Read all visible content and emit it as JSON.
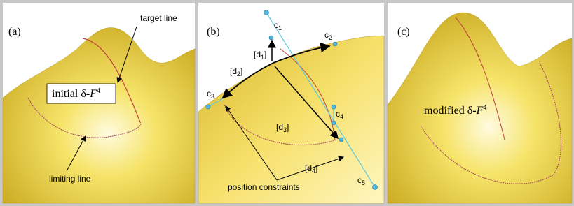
{
  "panel_a": {
    "label": "(a)",
    "target": "target line",
    "limiting": "limiting line",
    "surface": {
      "prefix": "initial δ-",
      "italic": "F",
      "sup": "4"
    }
  },
  "panel_b": {
    "label": "(b)",
    "points": [
      {
        "name": "c",
        "sub": "1"
      },
      {
        "name": "c",
        "sub": "2"
      },
      {
        "name": "c",
        "sub": "3"
      },
      {
        "name": "c",
        "sub": "4"
      },
      {
        "name": "c",
        "sub": "5"
      }
    ],
    "distances": [
      {
        "pre": "[d",
        "sub": "1",
        "post": "]"
      },
      {
        "pre": "[d",
        "sub": "2",
        "post": "]"
      },
      {
        "pre": "[d",
        "sub": "3",
        "post": "]"
      },
      {
        "pre": "[d",
        "sub": "4",
        "post": "]"
      }
    ],
    "caption": "position constraints"
  },
  "panel_c": {
    "label": "(c)",
    "surface": {
      "prefix": "modified δ-",
      "italic": "F",
      "sup": "4"
    }
  }
}
